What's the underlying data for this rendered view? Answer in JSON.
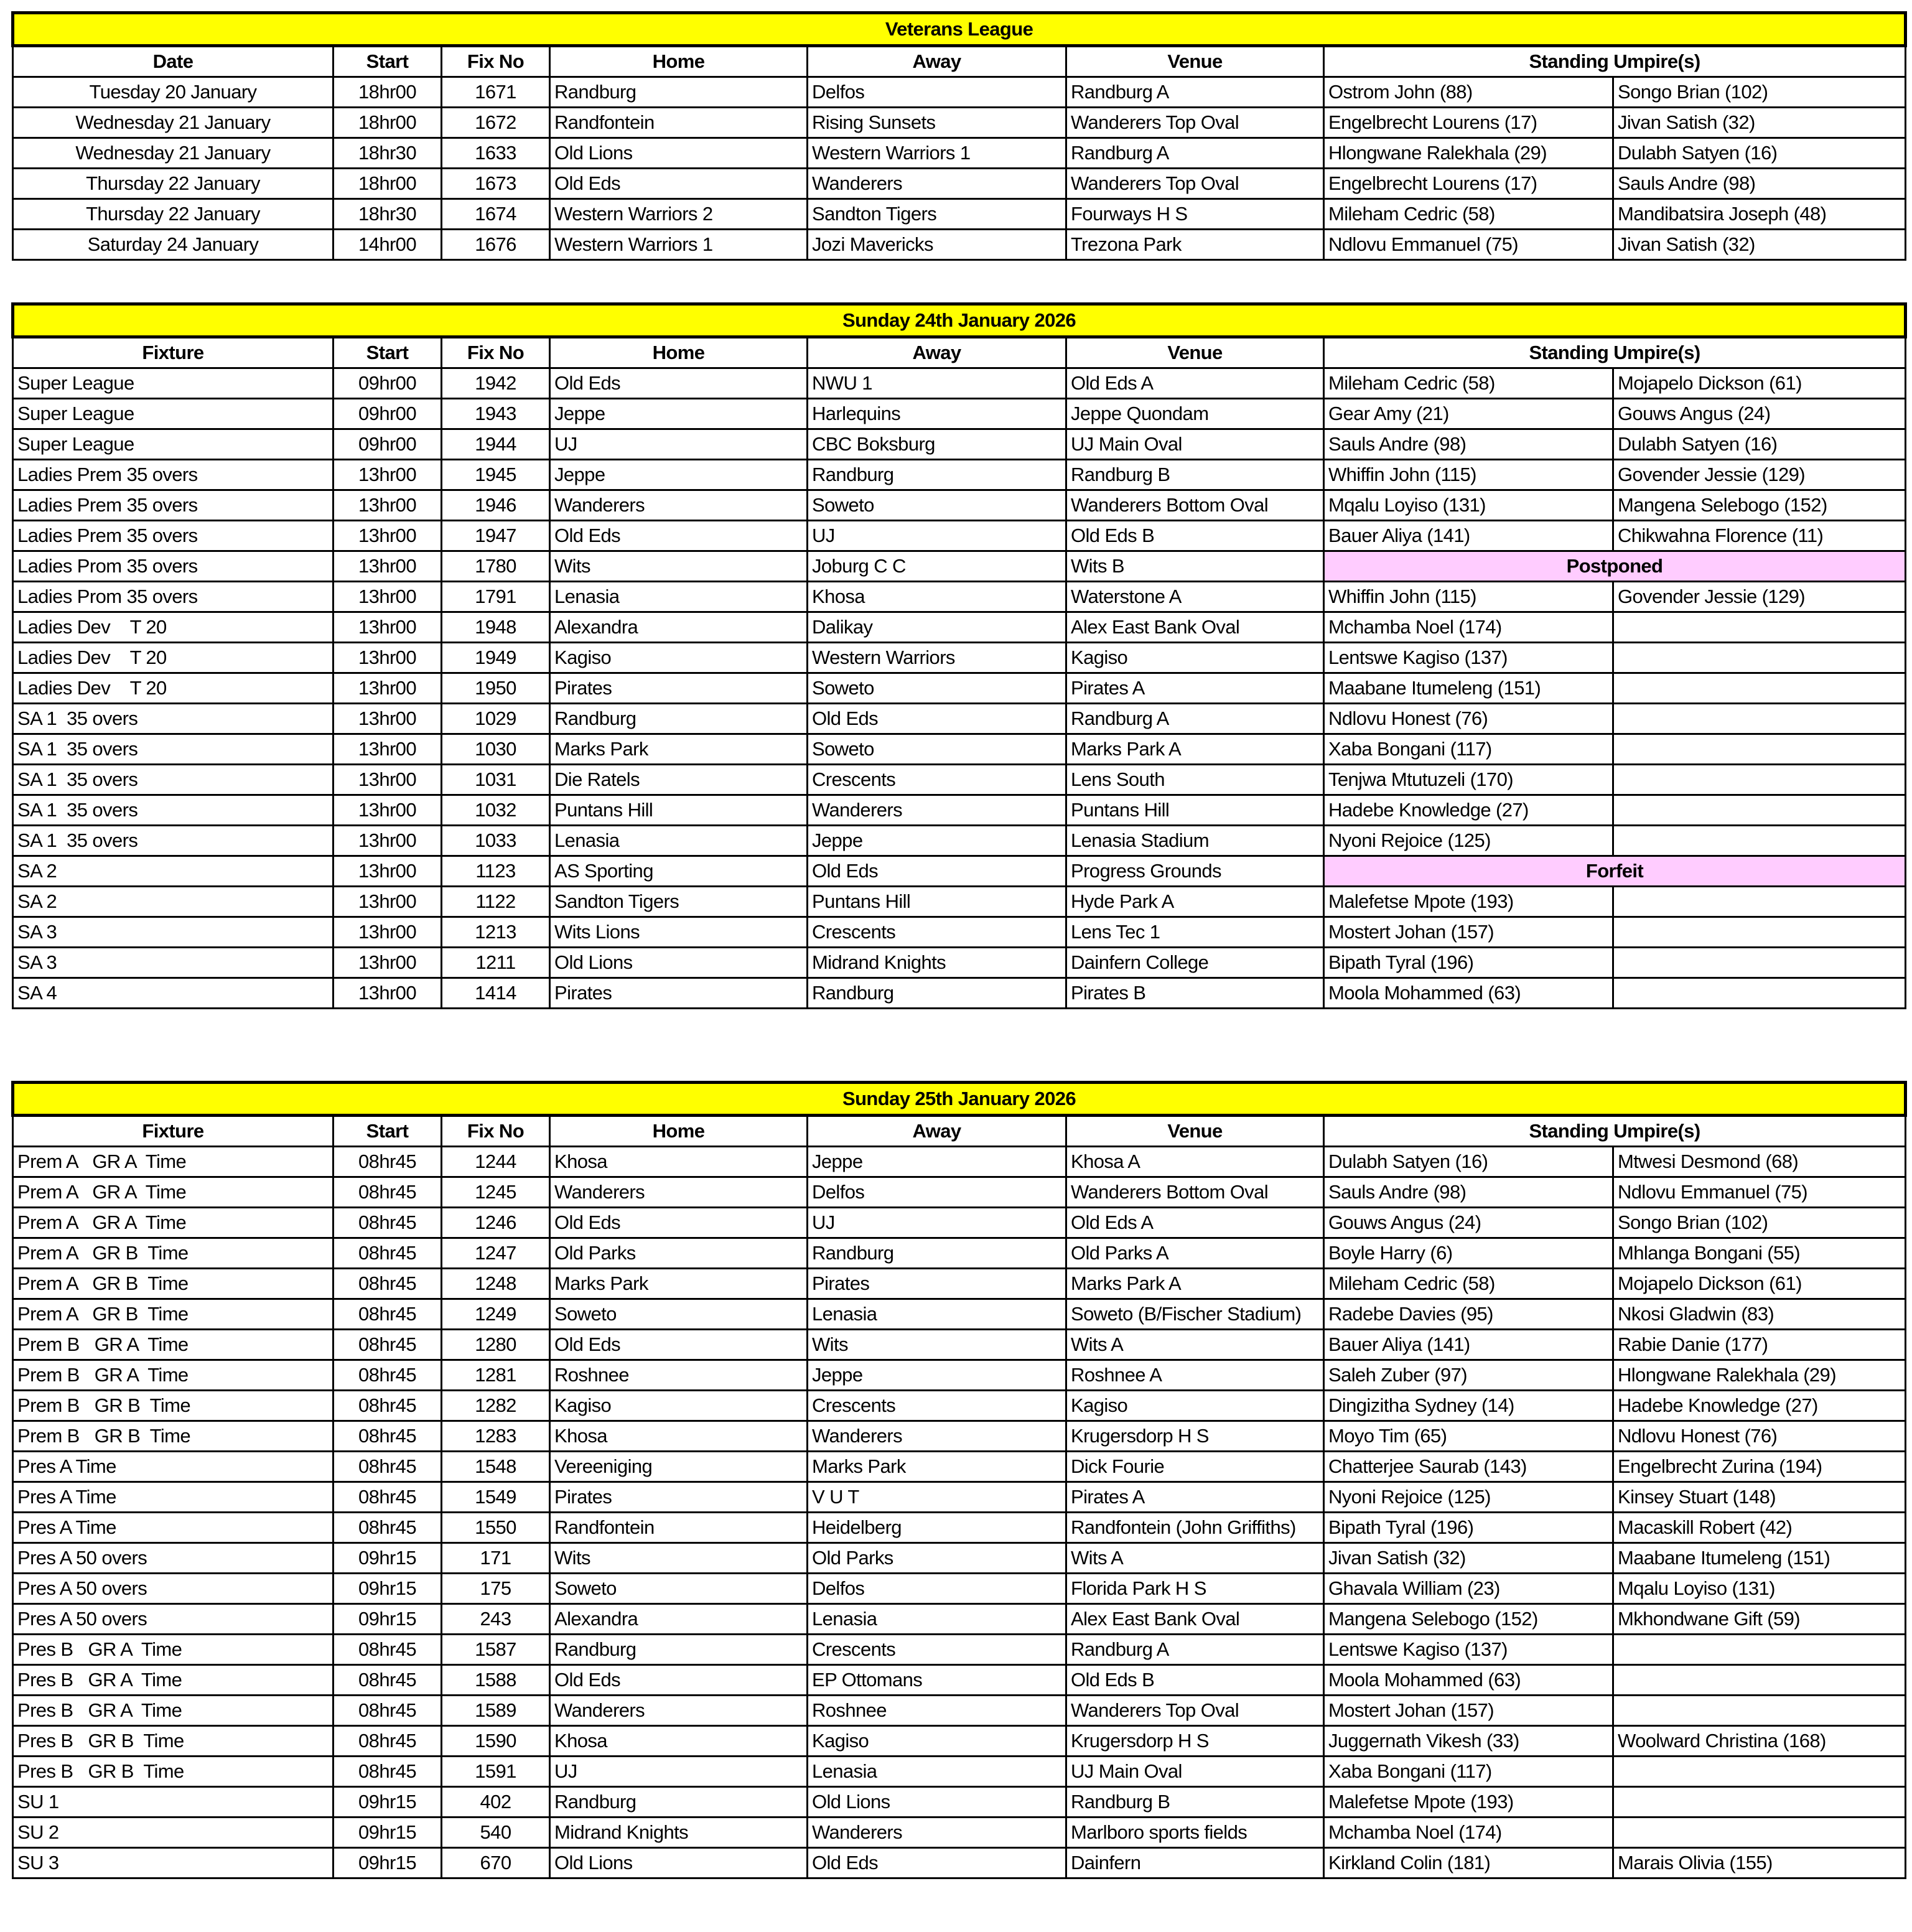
{
  "colors": {
    "title_bg": "#ffff00",
    "note_bg": "#ffccff"
  },
  "sections": [
    {
      "title": "Veterans League",
      "headers": [
        "Date",
        "Start",
        "Fix No",
        "Home",
        "Away",
        "Venue",
        "Standing Umpire(s)"
      ],
      "first_col_center": true,
      "rows": [
        [
          "Tuesday 20 January",
          "18hr00",
          "1671",
          "Randburg",
          "Delfos",
          "Randburg A",
          "Ostrom John (88)",
          "Songo Brian (102)"
        ],
        [
          "Wednesday 21 January",
          "18hr00",
          "1672",
          "Randfontein",
          "Rising Sunsets",
          "Wanderers Top Oval",
          "Engelbrecht Lourens (17)",
          "Jivan Satish (32)"
        ],
        [
          "Wednesday 21 January",
          "18hr30",
          "1633",
          "Old Lions",
          "Western Warriors 1",
          "Randburg A",
          "Hlongwane Ralekhala (29)",
          "Dulabh Satyen (16)"
        ],
        [
          "Thursday 22 January",
          "18hr00",
          "1673",
          "Old Eds",
          "Wanderers",
          "Wanderers Top Oval",
          "Engelbrecht Lourens (17)",
          "Sauls Andre (98)"
        ],
        [
          "Thursday 22 January",
          "18hr30",
          "1674",
          "Western Warriors 2",
          "Sandton Tigers",
          "Fourways H S",
          "Mileham Cedric (58)",
          "Mandibatsira Joseph (48)"
        ],
        [
          "Saturday 24 January",
          "14hr00",
          "1676",
          "Western Warriors 1",
          "Jozi Mavericks",
          "Trezona Park",
          "Ndlovu Emmanuel (75)",
          "Jivan Satish (32)"
        ]
      ]
    },
    {
      "title": "Sunday 24th January 2026",
      "headers": [
        "Fixture",
        "Start",
        "Fix No",
        "Home",
        "Away",
        "Venue",
        "Standing Umpire(s)"
      ],
      "first_col_center": false,
      "rows": [
        [
          "Super League",
          "09hr00",
          "1942",
          "Old Eds",
          "NWU 1",
          "Old Eds A",
          "Mileham Cedric (58)",
          "Mojapelo Dickson (61)"
        ],
        [
          "Super League",
          "09hr00",
          "1943",
          "Jeppe",
          "Harlequins",
          "Jeppe Quondam",
          "Gear Amy (21)",
          "Gouws Angus (24)"
        ],
        [
          "Super League",
          "09hr00",
          "1944",
          "UJ",
          "CBC Boksburg",
          "UJ Main Oval",
          "Sauls Andre (98)",
          "Dulabh Satyen (16)"
        ],
        [
          "Ladies Prem 35 overs",
          "13hr00",
          "1945",
          "Jeppe",
          "Randburg",
          "Randburg B",
          "Whiffin John (115)",
          "Govender Jessie (129)"
        ],
        [
          "Ladies Prem 35 overs",
          "13hr00",
          "1946",
          "Wanderers",
          "Soweto",
          "Wanderers Bottom Oval",
          "Mqalu Loyiso (131)",
          "Mangena Selebogo (152)"
        ],
        [
          "Ladies Prem 35 overs",
          "13hr00",
          "1947",
          "Old Eds",
          "UJ",
          "Old Eds B",
          "Bauer Aliya (141)",
          "Chikwahna Florence (11)"
        ],
        [
          "Ladies Prom 35 overs",
          "13hr00",
          "1780",
          "Wits",
          "Joburg C C",
          "Wits B",
          {
            "note": "Postponed"
          }
        ],
        [
          "Ladies Prom 35 overs",
          "13hr00",
          "1791",
          "Lenasia",
          "Khosa",
          "Waterstone A",
          "Whiffin John (115)",
          "Govender Jessie (129)"
        ],
        [
          "Ladies Dev    T 20",
          "13hr00",
          "1948",
          "Alexandra",
          "Dalikay",
          "Alex East Bank Oval",
          "Mchamba Noel (174)",
          ""
        ],
        [
          "Ladies Dev    T 20",
          "13hr00",
          "1949",
          "Kagiso",
          "Western Warriors",
          "Kagiso",
          "Lentswe Kagiso (137)",
          ""
        ],
        [
          "Ladies Dev    T 20",
          "13hr00",
          "1950",
          "Pirates",
          "Soweto",
          "Pirates A",
          "Maabane Itumeleng (151)",
          ""
        ],
        [
          "SA 1  35 overs",
          "13hr00",
          "1029",
          "Randburg",
          "Old Eds",
          "Randburg A",
          "Ndlovu Honest (76)",
          ""
        ],
        [
          "SA 1  35 overs",
          "13hr00",
          "1030",
          "Marks Park",
          "Soweto",
          "Marks Park A",
          "Xaba Bongani (117)",
          ""
        ],
        [
          "SA 1  35 overs",
          "13hr00",
          "1031",
          "Die Ratels",
          "Crescents",
          "Lens South",
          "Tenjwa Mtutuzeli (170)",
          ""
        ],
        [
          "SA 1  35 overs",
          "13hr00",
          "1032",
          "Puntans Hill",
          "Wanderers",
          "Puntans Hill",
          "Hadebe Knowledge (27)",
          ""
        ],
        [
          "SA 1  35 overs",
          "13hr00",
          "1033",
          "Lenasia",
          "Jeppe",
          "Lenasia Stadium",
          "Nyoni Rejoice (125)",
          ""
        ],
        [
          "SA 2",
          "13hr00",
          "1123",
          "AS Sporting",
          "Old Eds",
          "Progress Grounds",
          {
            "note": "Forfeit"
          }
        ],
        [
          "SA 2",
          "13hr00",
          "1122",
          "Sandton Tigers",
          "Puntans Hill",
          "Hyde Park A",
          "Malefetse Mpote (193)",
          ""
        ],
        [
          "SA 3",
          "13hr00",
          "1213",
          "Wits Lions",
          "Crescents",
          "Lens Tec 1",
          "Mostert Johan (157)",
          ""
        ],
        [
          "SA 3",
          "13hr00",
          "1211",
          "Old Lions",
          "Midrand Knights",
          "Dainfern College",
          "Bipath Tyral (196)",
          ""
        ],
        [
          "SA 4",
          "13hr00",
          "1414",
          "Pirates",
          "Randburg",
          "Pirates B",
          "Moola Mohammed (63)",
          ""
        ]
      ]
    },
    {
      "title": "Sunday 25th January 2026",
      "headers": [
        "Fixture",
        "Start",
        "Fix No",
        "Home",
        "Away",
        "Venue",
        "Standing Umpire(s)"
      ],
      "first_col_center": false,
      "rows": [
        [
          "Prem A   GR A  Time",
          "08hr45",
          "1244",
          "Khosa",
          "Jeppe",
          "Khosa A",
          "Dulabh Satyen (16)",
          "Mtwesi Desmond (68)"
        ],
        [
          "Prem A   GR A  Time",
          "08hr45",
          "1245",
          "Wanderers",
          "Delfos",
          "Wanderers Bottom Oval",
          "Sauls Andre (98)",
          "Ndlovu Emmanuel (75)"
        ],
        [
          "Prem A   GR A  Time",
          "08hr45",
          "1246",
          "Old Eds",
          "UJ",
          "Old Eds A",
          "Gouws Angus (24)",
          "Songo Brian (102)"
        ],
        [
          "Prem A   GR B  Time",
          "08hr45",
          "1247",
          "Old Parks",
          "Randburg",
          "Old Parks A",
          "Boyle Harry (6)",
          "Mhlanga Bongani (55)"
        ],
        [
          "Prem A   GR B  Time",
          "08hr45",
          "1248",
          "Marks Park",
          "Pirates",
          "Marks Park A",
          "Mileham Cedric (58)",
          "Mojapelo Dickson (61)"
        ],
        [
          "Prem A   GR B  Time",
          "08hr45",
          "1249",
          "Soweto",
          "Lenasia",
          "Soweto (B/Fischer Stadium)",
          "Radebe Davies (95)",
          "Nkosi Gladwin (83)"
        ],
        [
          "Prem B   GR A  Time",
          "08hr45",
          "1280",
          "Old Eds",
          "Wits",
          "Wits A",
          "Bauer Aliya (141)",
          "Rabie Danie (177)"
        ],
        [
          "Prem B   GR A  Time",
          "08hr45",
          "1281",
          "Roshnee",
          "Jeppe",
          "Roshnee A",
          "Saleh Zuber (97)",
          "Hlongwane Ralekhala (29)"
        ],
        [
          "Prem B   GR B  Time",
          "08hr45",
          "1282",
          "Kagiso",
          "Crescents",
          "Kagiso",
          "Dingizitha Sydney (14)",
          "Hadebe Knowledge (27)"
        ],
        [
          "Prem B   GR B  Time",
          "08hr45",
          "1283",
          "Khosa",
          "Wanderers",
          "Krugersdorp H S",
          "Moyo Tim (65)",
          "Ndlovu Honest (76)"
        ],
        [
          "Pres A Time",
          "08hr45",
          "1548",
          "Vereeniging",
          "Marks Park",
          "Dick Fourie",
          "Chatterjee Saurab (143)",
          "Engelbrecht Zurina (194)"
        ],
        [
          "Pres A Time",
          "08hr45",
          "1549",
          "Pirates",
          "V U T",
          "Pirates A",
          "Nyoni Rejoice (125)",
          "Kinsey Stuart (148)"
        ],
        [
          "Pres A Time",
          "08hr45",
          "1550",
          "Randfontein",
          "Heidelberg",
          "Randfontein (John Griffiths)",
          "Bipath Tyral (196)",
          "Macaskill Robert (42)"
        ],
        [
          "Pres A 50 overs",
          "09hr15",
          "171",
          "Wits",
          "Old Parks",
          "Wits A",
          "Jivan Satish (32)",
          "Maabane Itumeleng (151)"
        ],
        [
          "Pres A 50 overs",
          "09hr15",
          "175",
          "Soweto",
          "Delfos",
          "Florida Park H S",
          "Ghavala William (23)",
          "Mqalu Loyiso (131)"
        ],
        [
          "Pres A 50 overs",
          "09hr15",
          "243",
          "Alexandra",
          "Lenasia",
          "Alex East Bank Oval",
          "Mangena Selebogo (152)",
          "Mkhondwane Gift (59)"
        ],
        [
          "Pres B   GR A  Time",
          "08hr45",
          "1587",
          "Randburg",
          "Crescents",
          "Randburg A",
          "Lentswe Kagiso (137)",
          ""
        ],
        [
          "Pres B   GR A  Time",
          "08hr45",
          "1588",
          "Old Eds",
          "EP Ottomans",
          "Old Eds B",
          "Moola Mohammed (63)",
          ""
        ],
        [
          "Pres B   GR A  Time",
          "08hr45",
          "1589",
          "Wanderers",
          "Roshnee",
          "Wanderers Top Oval",
          "Mostert Johan (157)",
          ""
        ],
        [
          "Pres B   GR B  Time",
          "08hr45",
          "1590",
          "Khosa",
          "Kagiso",
          "Krugersdorp H S",
          "Juggernath Vikesh (33)",
          "Woolward Christina (168)"
        ],
        [
          "Pres B   GR B  Time",
          "08hr45",
          "1591",
          "UJ",
          "Lenasia",
          "UJ Main Oval",
          "Xaba Bongani (117)",
          ""
        ],
        [
          "SU 1",
          "09hr15",
          "402",
          "Randburg",
          "Old Lions",
          "Randburg B",
          "Malefetse Mpote (193)",
          ""
        ],
        [
          "SU 2",
          "09hr15",
          "540",
          "Midrand Knights",
          "Wanderers",
          "Marlboro sports fields",
          "Mchamba Noel (174)",
          ""
        ],
        [
          "SU 3",
          "09hr15",
          "670",
          "Old Lions",
          "Old Eds",
          "Dainfern",
          "Kirkland Colin (181)",
          "Marais Olivia (155)"
        ]
      ]
    }
  ]
}
